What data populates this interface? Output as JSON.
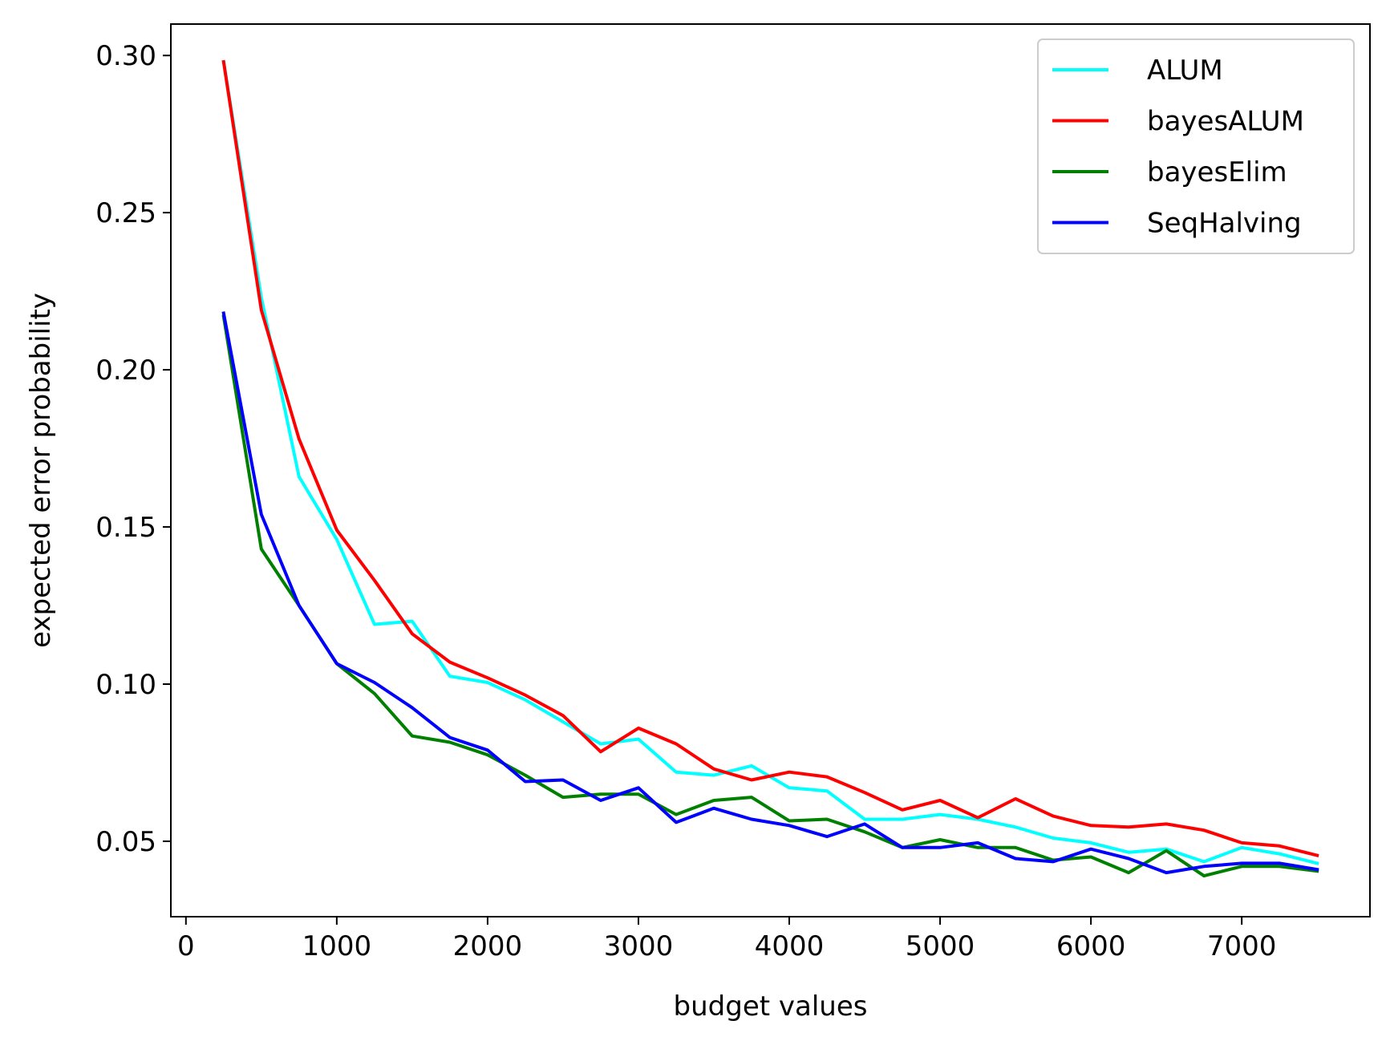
{
  "chart_data": {
    "type": "line",
    "title": "",
    "xlabel": "budget values",
    "ylabel": "expected error probability",
    "xlim": [
      -100,
      7850
    ],
    "ylim": [
      0.026,
      0.31
    ],
    "xticks": [
      0,
      1000,
      2000,
      3000,
      4000,
      5000,
      6000,
      7000
    ],
    "xtick_labels": [
      "0",
      "1000",
      "2000",
      "3000",
      "4000",
      "5000",
      "6000",
      "7000"
    ],
    "yticks": [
      0.05,
      0.1,
      0.15,
      0.2,
      0.25,
      0.3
    ],
    "ytick_labels": [
      "0.05",
      "0.10",
      "0.15",
      "0.20",
      "0.25",
      "0.30"
    ],
    "grid": false,
    "legend_position": "top-right",
    "x": [
      250,
      500,
      750,
      1000,
      1250,
      1500,
      1750,
      2000,
      2250,
      2500,
      2750,
      3000,
      3250,
      3500,
      3750,
      4000,
      4250,
      4500,
      4750,
      5000,
      5250,
      5500,
      5750,
      6000,
      6250,
      6500,
      6750,
      7000,
      7250,
      7500
    ],
    "series": [
      {
        "name": "ALUM",
        "color": "#00ffff",
        "values": [
          0.298,
          0.223,
          0.166,
          0.146,
          0.119,
          0.12,
          0.1025,
          0.1005,
          0.095,
          0.088,
          0.081,
          0.0825,
          0.072,
          0.071,
          0.074,
          0.067,
          0.066,
          0.057,
          0.057,
          0.0585,
          0.057,
          0.0545,
          0.051,
          0.0495,
          0.0465,
          0.0475,
          0.0435,
          0.048,
          0.046,
          0.043
        ]
      },
      {
        "name": "bayesALUM",
        "color": "#ff0000",
        "values": [
          0.298,
          0.219,
          0.178,
          0.149,
          0.133,
          0.116,
          0.107,
          0.102,
          0.0965,
          0.09,
          0.0785,
          0.086,
          0.081,
          0.073,
          0.0695,
          0.072,
          0.0705,
          0.0655,
          0.06,
          0.063,
          0.0575,
          0.0635,
          0.058,
          0.055,
          0.0545,
          0.0555,
          0.0535,
          0.0495,
          0.0485,
          0.0455
        ]
      },
      {
        "name": "bayesElim",
        "color": "#008000",
        "values": [
          0.217,
          0.143,
          0.125,
          0.1065,
          0.097,
          0.0835,
          0.0815,
          0.0775,
          0.071,
          0.064,
          0.065,
          0.065,
          0.0585,
          0.063,
          0.064,
          0.0565,
          0.057,
          0.053,
          0.048,
          0.0505,
          0.048,
          0.048,
          0.044,
          0.045,
          0.04,
          0.047,
          0.039,
          0.042,
          0.042,
          0.0405
        ]
      },
      {
        "name": "SeqHalving",
        "color": "#0000ff",
        "values": [
          0.218,
          0.154,
          0.125,
          0.1065,
          0.1005,
          0.0925,
          0.083,
          0.079,
          0.069,
          0.0695,
          0.063,
          0.067,
          0.056,
          0.0605,
          0.057,
          0.055,
          0.0515,
          0.0555,
          0.048,
          0.048,
          0.0495,
          0.0445,
          0.0435,
          0.0475,
          0.0445,
          0.04,
          0.042,
          0.043,
          0.043,
          0.041
        ]
      }
    ]
  }
}
